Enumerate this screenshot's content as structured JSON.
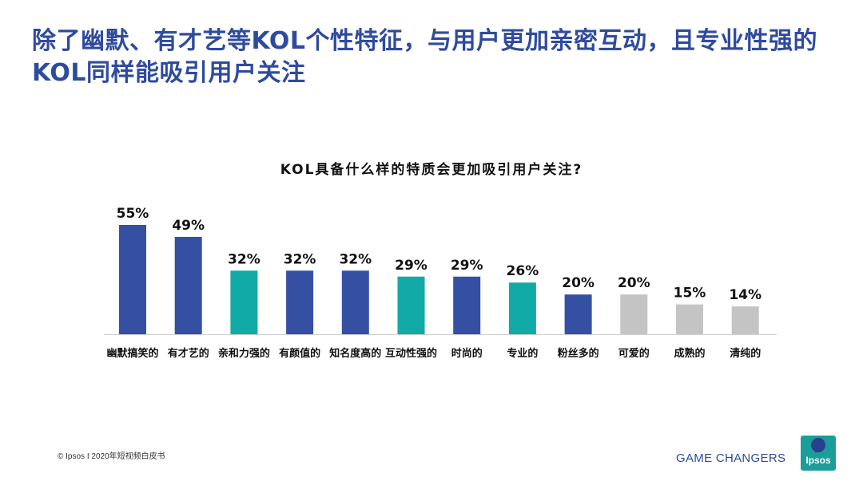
{
  "headline": "除了幽默、有才艺等KOL个性特征，与用户更加亲密互动，且专业性强的KOL同样能吸引用户关注",
  "chart_data": {
    "type": "bar",
    "title": "KOL具备什么样的特质会更加吸引用户关注?",
    "categories": [
      "幽默搞笑的",
      "有才艺的",
      "亲和力强的",
      "有颜值的",
      "知名度高的",
      "互动性强的",
      "时尚的",
      "专业的",
      "粉丝多的",
      "可爱的",
      "成熟的",
      "清纯的"
    ],
    "values": [
      55,
      49,
      32,
      32,
      32,
      29,
      29,
      26,
      20,
      20,
      15,
      14
    ],
    "value_labels": [
      "55%",
      "49%",
      "32%",
      "32%",
      "32%",
      "29%",
      "29%",
      "26%",
      "20%",
      "20%",
      "15%",
      "14%"
    ],
    "bar_colors": [
      "#3550a3",
      "#3550a3",
      "#12aaa6",
      "#3550a3",
      "#3550a3",
      "#12aaa6",
      "#3550a3",
      "#12aaa6",
      "#3550a3",
      "#c4c4c4",
      "#c4c4c4",
      "#c4c4c4"
    ],
    "unit": "%",
    "ylim": [
      0,
      55
    ],
    "grid": false,
    "legend": "none"
  },
  "footer": {
    "note": "© Ipsos I 2020年短视频白皮书",
    "tagline": "GAME CHANGERS",
    "logo_text": "Ipsos"
  }
}
